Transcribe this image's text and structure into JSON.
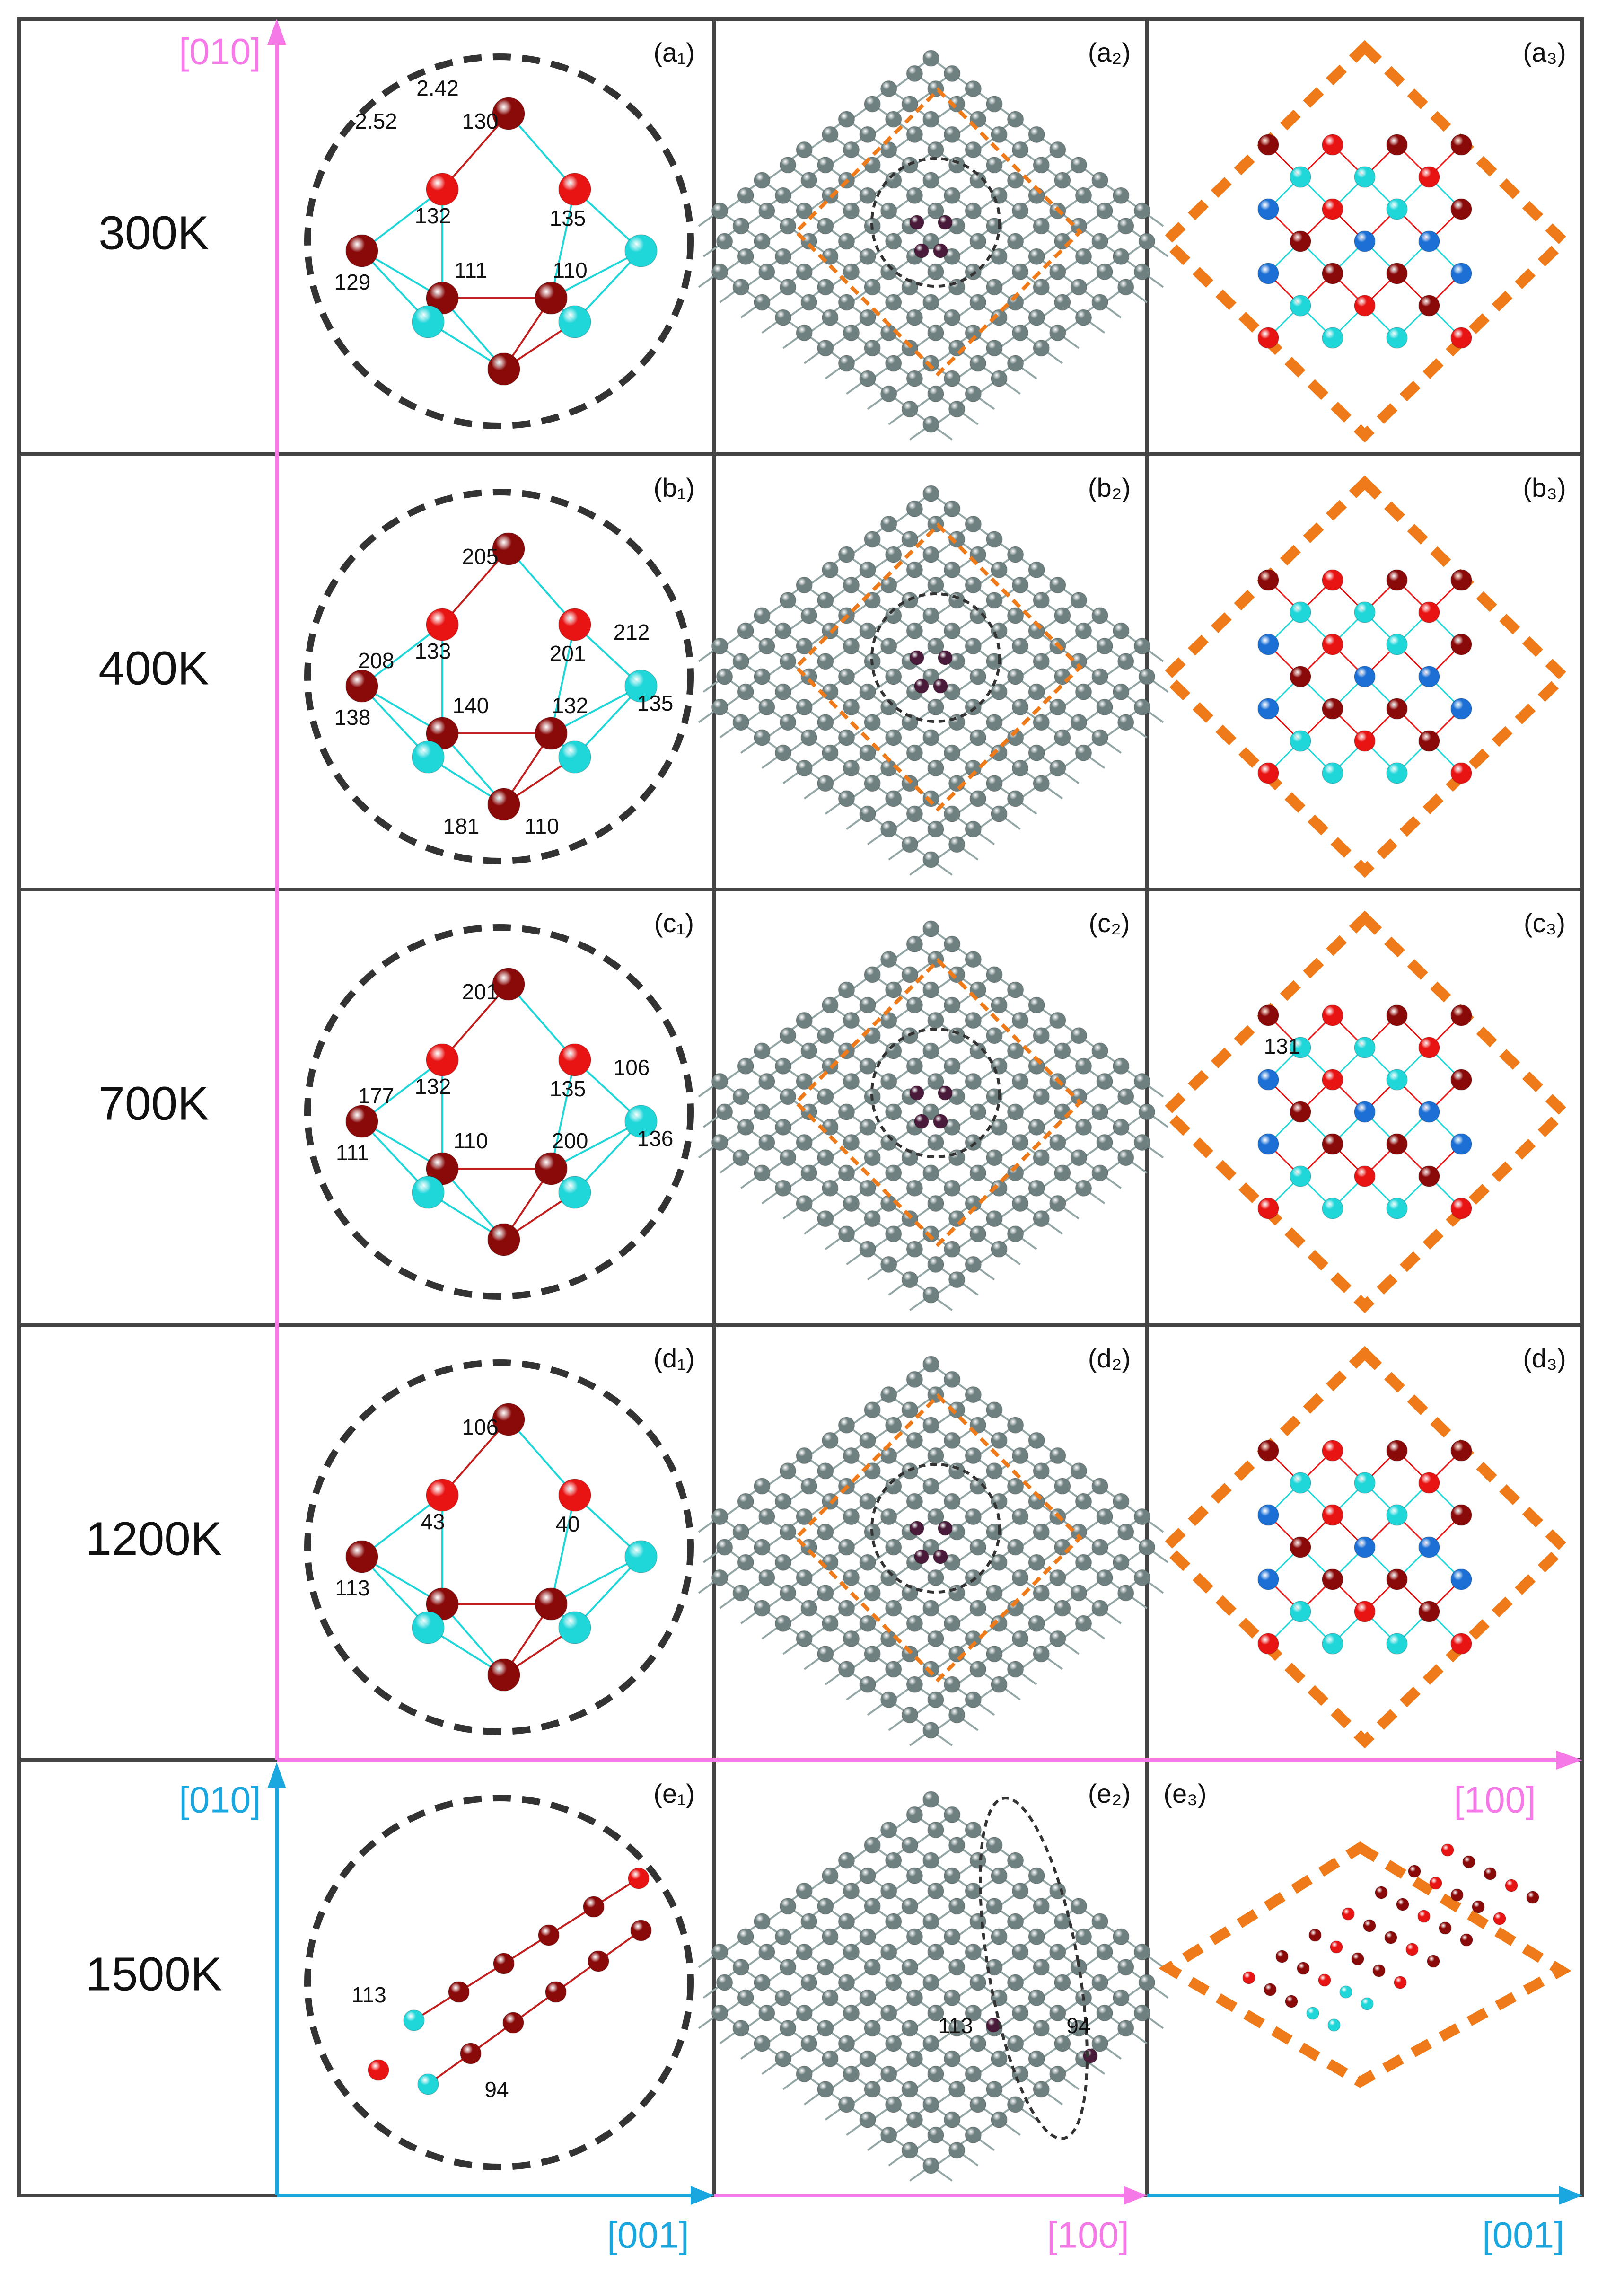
{
  "rows": [
    {
      "key": "a",
      "temperature": "300K",
      "panel_labels": [
        "(a₁)",
        "(a₂)",
        "(a₃)"
      ],
      "annotations": [
        "130",
        "132",
        "135",
        "129",
        "111",
        "110"
      ],
      "bond_lengths": [
        "2.42",
        "2.52"
      ]
    },
    {
      "key": "b",
      "temperature": "400K",
      "panel_labels": [
        "(b₁)",
        "(b₂)",
        "(b₃)"
      ],
      "annotations": [
        "205",
        "133",
        "201",
        "138",
        "140",
        "132",
        "135",
        "208",
        "212",
        "181",
        "110"
      ]
    },
    {
      "key": "c",
      "temperature": "700K",
      "panel_labels": [
        "(c₁)",
        "(c₂)",
        "(c₃)"
      ],
      "annotations": [
        "201",
        "132",
        "135",
        "111",
        "110",
        "200",
        "136",
        "177",
        "106"
      ],
      "right_annotations": [
        "131"
      ]
    },
    {
      "key": "d",
      "temperature": "1200K",
      "panel_labels": [
        "(d₁)",
        "(d₂)",
        "(d₃)"
      ],
      "annotations": [
        "106",
        "43",
        "40",
        "113"
      ]
    },
    {
      "key": "e",
      "temperature": "1500K",
      "panel_labels": [
        "(e₁)",
        "(e₂)",
        "(e₃)"
      ],
      "annotations": [
        "113",
        "94"
      ],
      "middle_annotations": [
        "113",
        "94"
      ]
    }
  ],
  "axes": {
    "magenta_vertical": "[010]",
    "magenta_horizontal": "[100]",
    "cyan_vertical": "[010]",
    "cyan_horizontal_left": "[001]",
    "magenta_horizontal_bottom": "[100]",
    "cyan_horizontal_right": "[001]"
  },
  "colors": {
    "magenta": "#f57ae8",
    "cyan": "#1aa7e0",
    "orange": "#ef7a1a",
    "grid": "#444444",
    "dark_red": "#8a0a0a",
    "red": "#e81414",
    "cyan_atom": "#1fd6d9",
    "blue_atom": "#1c6fd4",
    "gray_atom": "#6f8080",
    "purple_atom": "#4a1a3a"
  }
}
